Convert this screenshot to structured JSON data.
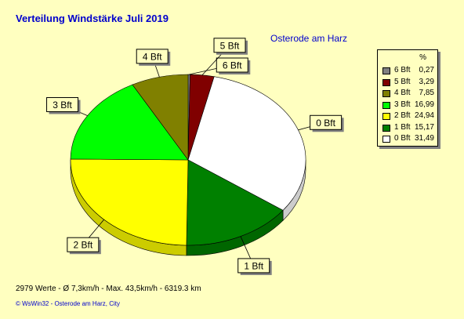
{
  "header": {
    "title": "Verteilung Windstärke  Juli 2019",
    "location": "Osterode am Harz"
  },
  "footer": {
    "stats": "2979 Werte   -   Ø 7,3km/h   -   Max. 43,5km/h   -   6319.3 km",
    "copyright": "© WsWin32  -  Osterode am Harz, City"
  },
  "legend": {
    "unit": "%"
  },
  "chart_data": {
    "type": "pie",
    "categories": [
      "6 Bft",
      "5 Bft",
      "4 Bft",
      "3 Bft",
      "2 Bft",
      "1 Bft",
      "0 Bft"
    ],
    "values": [
      0.27,
      3.29,
      7.85,
      16.99,
      24.94,
      15.17,
      31.49
    ],
    "value_labels": [
      "0,27",
      "3,29",
      "7,85",
      "16,99",
      "24,94",
      "15,17",
      "31,49"
    ],
    "colors": [
      "#808080",
      "#800000",
      "#808000",
      "#00ff00",
      "#ffff00",
      "#008000",
      "#ffffff"
    ],
    "legend_placement": "right"
  }
}
